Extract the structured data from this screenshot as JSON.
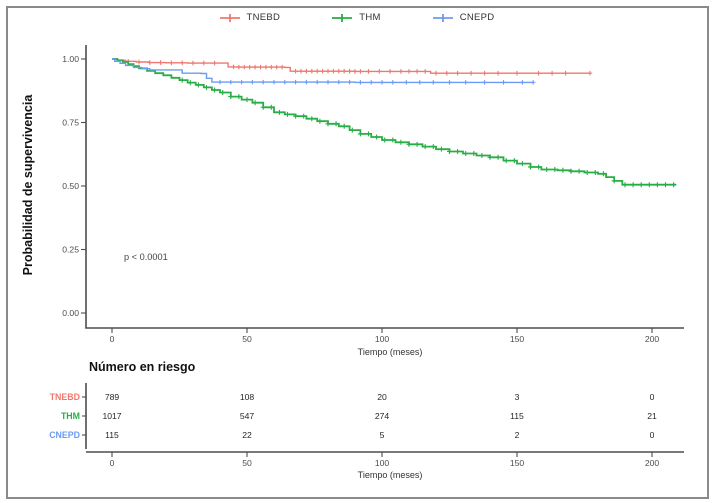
{
  "figure": {
    "y_axis_label": "Probabilidad de supervivencia",
    "x_axis_label_top": "Tiempo (meses)",
    "x_axis_label_bottom": "Tiempo (meses)",
    "p_value": "p < 0.0001",
    "risk_table_title": "Número en riesgo",
    "border_color": "#8a8a8a"
  },
  "legend": {
    "items": [
      {
        "label": "TNEBD",
        "color": "#F0786F"
      },
      {
        "label": "THM",
        "color": "#27AE45"
      },
      {
        "label": "CNEPD",
        "color": "#6C9BF2"
      }
    ]
  },
  "chart_data": {
    "type": "line",
    "subtype": "kaplan-meier-step",
    "title": "",
    "xlabel": "Tiempo (meses)",
    "ylabel": "Probabilidad de supervivencia",
    "annotation": "p < 0.0001",
    "xlim": [
      -9,
      212
    ],
    "ylim": [
      -0.05,
      1.05
    ],
    "x_ticks": [
      0,
      50,
      100,
      150,
      200
    ],
    "y_ticks": [
      {
        "v": 0.0,
        "label": "0.00"
      },
      {
        "v": 0.25,
        "label": "0.25"
      },
      {
        "v": 0.5,
        "label": "0.50"
      },
      {
        "v": 0.75,
        "label": "0.75"
      },
      {
        "v": 1.0,
        "label": "1.00"
      }
    ],
    "grid": false,
    "legend_position": "top",
    "series": [
      {
        "name": "TNEBD",
        "color": "#F0786F",
        "stroke_width": 1.4,
        "points": [
          [
            0,
            1.0
          ],
          [
            2,
            0.995
          ],
          [
            5,
            0.991
          ],
          [
            9,
            0.988
          ],
          [
            14,
            0.986
          ],
          [
            20,
            0.985
          ],
          [
            28,
            0.984
          ],
          [
            42,
            0.984
          ],
          [
            43,
            0.969
          ],
          [
            47,
            0.968
          ],
          [
            64,
            0.967
          ],
          [
            66,
            0.952
          ],
          [
            90,
            0.951
          ],
          [
            115,
            0.951
          ],
          [
            118,
            0.944
          ],
          [
            177,
            0.944
          ]
        ],
        "censor_months": [
          6,
          10,
          14,
          18,
          22,
          26,
          30,
          34,
          38,
          45,
          47,
          49,
          51,
          53,
          55,
          57,
          59,
          61,
          63,
          68,
          70,
          72,
          74,
          76,
          78,
          80,
          82,
          84,
          86,
          88,
          90,
          92,
          95,
          99,
          103,
          107,
          110,
          113,
          116,
          120,
          124,
          128,
          133,
          138,
          143,
          150,
          158,
          163,
          168,
          177
        ]
      },
      {
        "name": "THM",
        "color": "#27AE45",
        "stroke_width": 1.8,
        "points": [
          [
            0,
            1.0
          ],
          [
            2,
            0.995
          ],
          [
            4,
            0.988
          ],
          [
            6,
            0.98
          ],
          [
            8,
            0.972
          ],
          [
            10,
            0.963
          ],
          [
            13,
            0.953
          ],
          [
            16,
            0.944
          ],
          [
            19,
            0.936
          ],
          [
            22,
            0.926
          ],
          [
            25,
            0.917
          ],
          [
            28,
            0.907
          ],
          [
            31,
            0.898
          ],
          [
            34,
            0.888
          ],
          [
            37,
            0.878
          ],
          [
            40,
            0.868
          ],
          [
            44,
            0.852
          ],
          [
            48,
            0.84
          ],
          [
            52,
            0.828
          ],
          [
            56,
            0.81
          ],
          [
            60,
            0.79
          ],
          [
            64,
            0.782
          ],
          [
            68,
            0.775
          ],
          [
            72,
            0.765
          ],
          [
            76,
            0.755
          ],
          [
            80,
            0.745
          ],
          [
            84,
            0.735
          ],
          [
            88,
            0.72
          ],
          [
            92,
            0.705
          ],
          [
            96,
            0.693
          ],
          [
            100,
            0.681
          ],
          [
            105,
            0.672
          ],
          [
            110,
            0.664
          ],
          [
            115,
            0.655
          ],
          [
            120,
            0.645
          ],
          [
            125,
            0.636
          ],
          [
            130,
            0.628
          ],
          [
            135,
            0.62
          ],
          [
            140,
            0.613
          ],
          [
            145,
            0.6
          ],
          [
            150,
            0.588
          ],
          [
            155,
            0.575
          ],
          [
            159,
            0.565
          ],
          [
            165,
            0.562
          ],
          [
            170,
            0.558
          ],
          [
            175,
            0.553
          ],
          [
            180,
            0.548
          ],
          [
            183,
            0.535
          ],
          [
            186,
            0.52
          ],
          [
            189,
            0.505
          ],
          [
            209,
            0.505
          ]
        ],
        "censor_months": [
          26,
          29,
          32,
          35,
          38,
          41,
          44,
          47,
          50,
          53,
          56,
          59,
          62,
          65,
          68,
          71,
          74,
          77,
          80,
          83,
          86,
          89,
          92,
          95,
          98,
          101,
          104,
          107,
          110,
          113,
          116,
          119,
          122,
          125,
          128,
          131,
          134,
          137,
          140,
          143,
          146,
          149,
          152,
          155,
          158,
          161,
          164,
          167,
          170,
          173,
          176,
          179,
          182,
          186,
          190,
          193,
          196,
          199,
          202,
          205,
          208
        ],
        "censor_size": 5
      },
      {
        "name": "CNEPD",
        "color": "#6C9BF2",
        "stroke_width": 1.4,
        "points": [
          [
            0,
            1.0
          ],
          [
            1,
            0.991
          ],
          [
            3,
            0.983
          ],
          [
            5,
            0.975
          ],
          [
            8,
            0.967
          ],
          [
            11,
            0.962
          ],
          [
            14,
            0.957
          ],
          [
            24,
            0.957
          ],
          [
            26,
            0.944
          ],
          [
            33,
            0.943
          ],
          [
            35,
            0.924
          ],
          [
            37,
            0.909
          ],
          [
            90,
            0.908
          ],
          [
            156,
            0.908
          ]
        ],
        "censor_months": [
          40,
          44,
          48,
          52,
          56,
          60,
          64,
          68,
          72,
          76,
          80,
          84,
          88,
          92,
          96,
          100,
          104,
          109,
          114,
          119,
          125,
          131,
          138,
          145,
          152,
          156
        ]
      }
    ],
    "risk_table": {
      "title": "Número en riesgo",
      "xlabel": "Tiempo (meses)",
      "columns": [
        0,
        50,
        100,
        150,
        200
      ],
      "rows": [
        {
          "name": "TNEBD",
          "color": "#F0786F",
          "values": [
            "789",
            "108",
            "20",
            "3",
            "0"
          ]
        },
        {
          "name": "THM",
          "color": "#27AE45",
          "values": [
            "1017",
            "547",
            "274",
            "115",
            "21"
          ]
        },
        {
          "name": "CNEPD",
          "color": "#6C9BF2",
          "values": [
            "115",
            "22",
            "5",
            "2",
            "0"
          ]
        }
      ]
    }
  }
}
